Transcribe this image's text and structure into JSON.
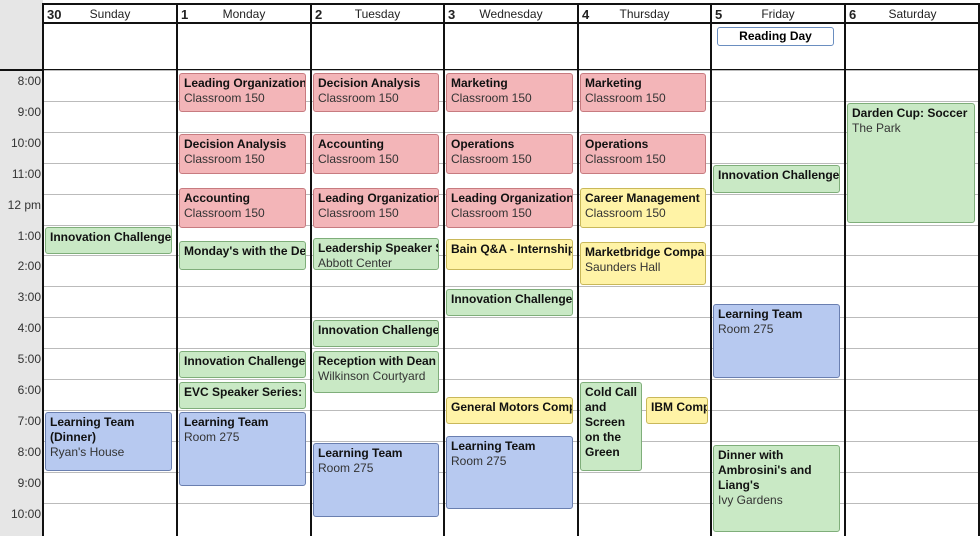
{
  "days": [
    {
      "num": "30",
      "name": "Sunday"
    },
    {
      "num": "1",
      "name": "Monday"
    },
    {
      "num": "2",
      "name": "Tuesday"
    },
    {
      "num": "3",
      "name": "Wednesday"
    },
    {
      "num": "4",
      "name": "Thursday"
    },
    {
      "num": "5",
      "name": "Friday"
    },
    {
      "num": "6",
      "name": "Saturday"
    }
  ],
  "time_labels": [
    "8:00",
    "9:00",
    "10:00",
    "11:00",
    "12 pm",
    "1:00",
    "2:00",
    "3:00",
    "4:00",
    "5:00",
    "6:00",
    "7:00",
    "8:00",
    "9:00",
    "10:00"
  ],
  "all_day": [
    {
      "day": 5,
      "title": "Reading Day"
    }
  ],
  "colors": {
    "red": "#f3b5b8",
    "green": "#c9e9c5",
    "blue": "#b7c9f0",
    "yellow": "#fff3a6"
  },
  "events": [
    {
      "day": 0,
      "start": 13.05,
      "end": 14.0,
      "color": "green",
      "title": "Innovation Challenge:"
    },
    {
      "day": 0,
      "start": 19.05,
      "end": 21.0,
      "color": "blue",
      "title": "Learning Team (Dinner)",
      "location": "Ryan's House",
      "wrap": true
    },
    {
      "day": 1,
      "start": 8.05,
      "end": 9.4,
      "color": "red",
      "title": "Leading Organizations",
      "location": "Classroom 150"
    },
    {
      "day": 1,
      "start": 10.05,
      "end": 11.4,
      "color": "red",
      "title": "Decision Analysis",
      "location": "Classroom 150"
    },
    {
      "day": 1,
      "start": 11.8,
      "end": 13.15,
      "color": "red",
      "title": "Accounting",
      "location": "Classroom 150"
    },
    {
      "day": 1,
      "start": 13.5,
      "end": 14.5,
      "color": "green",
      "title": "Monday's with the Dean"
    },
    {
      "day": 1,
      "start": 17.05,
      "end": 18.0,
      "color": "green",
      "title": "Innovation Challenge:"
    },
    {
      "day": 1,
      "start": 18.05,
      "end": 19.0,
      "color": "green",
      "title": "EVC Speaker Series: R"
    },
    {
      "day": 1,
      "start": 19.05,
      "end": 21.5,
      "color": "blue",
      "title": "Learning Team",
      "location": "Room 275"
    },
    {
      "day": 2,
      "start": 8.05,
      "end": 9.4,
      "color": "red",
      "title": "Decision Analysis",
      "location": "Classroom 150"
    },
    {
      "day": 2,
      "start": 10.05,
      "end": 11.4,
      "color": "red",
      "title": "Accounting",
      "location": "Classroom 150"
    },
    {
      "day": 2,
      "start": 11.8,
      "end": 13.15,
      "color": "red",
      "title": "Leading Organizations",
      "location": "Classroom 150"
    },
    {
      "day": 2,
      "start": 13.4,
      "end": 14.5,
      "color": "green",
      "title": "Leadership Speaker Se",
      "location": "Abbott Center"
    },
    {
      "day": 2,
      "start": 16.05,
      "end": 17.0,
      "color": "green",
      "title": "Innovation Challenge;"
    },
    {
      "day": 2,
      "start": 17.05,
      "end": 18.5,
      "color": "green",
      "title": "Reception with Dean E",
      "location": "Wilkinson Courtyard"
    },
    {
      "day": 2,
      "start": 20.05,
      "end": 22.5,
      "color": "blue",
      "title": "Learning Team",
      "location": "Room 275"
    },
    {
      "day": 3,
      "start": 8.05,
      "end": 9.4,
      "color": "red",
      "title": "Marketing",
      "location": "Classroom 150"
    },
    {
      "day": 3,
      "start": 10.05,
      "end": 11.4,
      "color": "red",
      "title": "Operations",
      "location": "Classroom 150"
    },
    {
      "day": 3,
      "start": 11.8,
      "end": 13.15,
      "color": "red",
      "title": "Leading Organizations",
      "location": "Classroom 150"
    },
    {
      "day": 3,
      "start": 13.45,
      "end": 14.5,
      "color": "yellow",
      "title": "Bain Q&A - Internship;"
    },
    {
      "day": 3,
      "start": 15.05,
      "end": 16.0,
      "color": "green",
      "title": "Innovation Challenge;"
    },
    {
      "day": 3,
      "start": 18.55,
      "end": 19.5,
      "color": "yellow",
      "title": "General Motors Comp:"
    },
    {
      "day": 3,
      "start": 19.8,
      "end": 22.25,
      "color": "blue",
      "title": "Learning Team",
      "location": "Room 275"
    },
    {
      "day": 4,
      "start": 8.05,
      "end": 9.4,
      "color": "red",
      "title": "Marketing",
      "location": "Classroom 150"
    },
    {
      "day": 4,
      "start": 10.05,
      "end": 11.4,
      "color": "red",
      "title": "Operations",
      "location": "Classroom 150"
    },
    {
      "day": 4,
      "start": 11.8,
      "end": 13.15,
      "color": "yellow",
      "title": "Career Management",
      "location": "Classroom 150"
    },
    {
      "day": 4,
      "start": 13.55,
      "end": 15.0,
      "color": "yellow",
      "title": "Marketbridge Compan",
      "location": "Saunders Hall"
    },
    {
      "day": 4,
      "start": 18.05,
      "end": 21.0,
      "color": "green",
      "title": "Cold Call and Screen on the Green",
      "wrap": true,
      "half": "left"
    },
    {
      "day": 4,
      "start": 18.55,
      "end": 19.5,
      "color": "yellow",
      "title": "IBM Comp",
      "half": "right"
    },
    {
      "day": 5,
      "start": 11.05,
      "end": 12.0,
      "color": "green",
      "title": "Innovation Challenge"
    },
    {
      "day": 5,
      "start": 15.55,
      "end": 18.0,
      "color": "blue",
      "title": "Learning Team",
      "location": "Room 275"
    },
    {
      "day": 5,
      "start": 20.1,
      "end": 23.0,
      "color": "green",
      "title": "Dinner with Ambrosini's and Liang's",
      "location": "Ivy Gardens",
      "wrap": true
    },
    {
      "day": 6,
      "start": 9.05,
      "end": 13.0,
      "color": "green",
      "title": "Darden Cup: Soccer",
      "location": "The Park"
    }
  ]
}
